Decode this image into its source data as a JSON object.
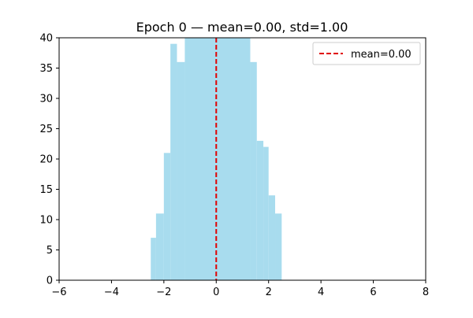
{
  "chart_data": {
    "type": "bar",
    "title": "Epoch 0 — mean=0.00, std=1.00",
    "xlabel": "",
    "ylabel": "",
    "xlim": [
      -6,
      8
    ],
    "ylim": [
      0,
      40
    ],
    "grid": false,
    "legend_placement": "upper-right",
    "xticks": [
      -6,
      -4,
      -2,
      0,
      2,
      4,
      6,
      8
    ],
    "yticks": [
      0,
      5,
      10,
      15,
      20,
      25,
      30,
      35,
      40
    ],
    "bins": [
      {
        "x0": -2.5,
        "x1": -2.3,
        "count": 7
      },
      {
        "x0": -2.3,
        "x1": -2.0,
        "count": 11
      },
      {
        "x0": -2.0,
        "x1": -1.75,
        "count": 21
      },
      {
        "x0": -1.75,
        "x1": -1.5,
        "count": 39
      },
      {
        "x0": -1.5,
        "x1": -1.2,
        "count": 36
      },
      {
        "x0": -1.2,
        "x1": 1.3,
        "count": 40
      },
      {
        "x0": 1.3,
        "x1": 1.55,
        "count": 36
      },
      {
        "x0": 1.55,
        "x1": 1.8,
        "count": 23
      },
      {
        "x0": 1.8,
        "x1": 2.0,
        "count": 22
      },
      {
        "x0": 2.0,
        "x1": 2.25,
        "count": 14
      },
      {
        "x0": 2.25,
        "x1": 2.5,
        "count": 11
      }
    ],
    "bar_color": "#a8dcee",
    "mean_line": {
      "x": 0.0,
      "label": "mean=0.00",
      "color": "#e00000"
    }
  }
}
